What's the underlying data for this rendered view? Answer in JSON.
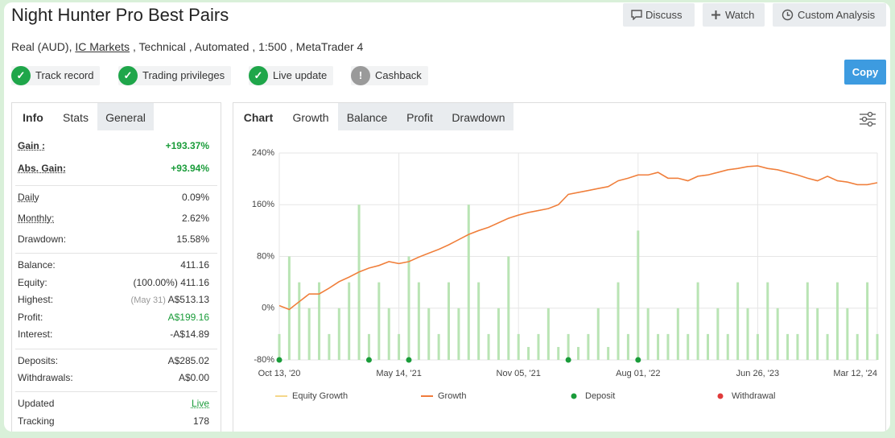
{
  "header": {
    "title": "Night Hunter Pro Best Pairs",
    "actions": [
      "Discuss",
      "Watch",
      "Custom Analysis"
    ],
    "account_type": "Real (AUD),",
    "broker": "IC Markets",
    "details": ", Technical , Automated , 1:500 , MetaTrader 4",
    "copy_button": "Copy"
  },
  "badges": [
    {
      "label": "Track record",
      "ok": true
    },
    {
      "label": "Trading privileges",
      "ok": true
    },
    {
      "label": "Live update",
      "ok": true
    },
    {
      "label": "Cashback",
      "ok": false
    }
  ],
  "stats_panel": {
    "tabs": [
      "Info",
      "Stats",
      "General"
    ],
    "groups": [
      [
        {
          "label": "Gain :",
          "value": "+193.37%",
          "color": "#1a9c3a"
        },
        {
          "label": "Abs. Gain:",
          "value": "+93.94%",
          "color": "#1a9c3a"
        }
      ],
      [
        {
          "label": "Daily",
          "value": "0.09%"
        },
        {
          "label": "Monthly:",
          "value": "2.62%"
        },
        {
          "label": "Drawdown:",
          "value": "15.58%"
        }
      ],
      [
        {
          "label": "Balance:",
          "value": "411.16"
        },
        {
          "label": "Equity:",
          "note": "(100.00%)",
          "value": "411.16"
        },
        {
          "label": "Highest:",
          "note": "(May 31)",
          "value": "A$513.13"
        },
        {
          "label": "Profit:",
          "value": "A$199.16",
          "color": "#1a9c3a"
        },
        {
          "label": "Interest:",
          "value": "-A$14.89"
        }
      ],
      [
        {
          "label": "Deposits:",
          "value": "A$285.02"
        },
        {
          "label": "Withdrawals:",
          "value": "A$0.00"
        }
      ],
      [
        {
          "label": "Updated",
          "value": "Live",
          "color": "#1a9c3a"
        },
        {
          "label": "Tracking",
          "value": "178"
        }
      ]
    ]
  },
  "chart_panel": {
    "label": "Chart",
    "tabs": [
      "Growth",
      "Balance",
      "Profit",
      "Drawdown"
    ]
  },
  "chart_data": {
    "type": "line",
    "categories": [
      "Oct 13, '20",
      null,
      null,
      null,
      null,
      null,
      null,
      null,
      null,
      null,
      null,
      null,
      "May 14, '21",
      null,
      null,
      null,
      null,
      null,
      null,
      null,
      null,
      null,
      null,
      null,
      "Nov 05, '21",
      null,
      null,
      null,
      null,
      null,
      null,
      null,
      null,
      null,
      null,
      null,
      "Aug 01, '22",
      null,
      null,
      null,
      null,
      null,
      null,
      null,
      null,
      null,
      null,
      null,
      "Jun 26, '23",
      null,
      null,
      null,
      null,
      null,
      null,
      null,
      null,
      null,
      null,
      null,
      "Mar 12, '24"
    ],
    "series": [
      {
        "name": "Equity Growth",
        "color": "#f5d78a",
        "values": [
          4,
          -2,
          10,
          22,
          22,
          31,
          41,
          48,
          56,
          62,
          66,
          72,
          69,
          72,
          79,
          85,
          91,
          98,
          106,
          114,
          120,
          125,
          132,
          139,
          144,
          148,
          151,
          154,
          160,
          176,
          179,
          182,
          185,
          188,
          197,
          201,
          206,
          206,
          210,
          201,
          201,
          197,
          204,
          206,
          210,
          214,
          216,
          219,
          220,
          216,
          214,
          210,
          206,
          201,
          197,
          204,
          197,
          195,
          191,
          191,
          194
        ]
      },
      {
        "name": "Growth",
        "color": "#f07c3c",
        "values": [
          4,
          -2,
          10,
          22,
          22,
          31,
          41,
          48,
          56,
          62,
          66,
          72,
          69,
          72,
          79,
          85,
          91,
          98,
          106,
          114,
          120,
          125,
          132,
          139,
          144,
          148,
          151,
          154,
          160,
          176,
          179,
          182,
          185,
          188,
          197,
          201,
          206,
          206,
          210,
          201,
          201,
          197,
          204,
          206,
          210,
          214,
          216,
          219,
          220,
          216,
          214,
          210,
          206,
          201,
          197,
          204,
          197,
          195,
          191,
          191,
          194
        ]
      }
    ],
    "bars": {
      "color": "#b9e4b4",
      "values": [
        -40,
        80,
        40,
        0,
        40,
        -40,
        0,
        40,
        160,
        -40,
        40,
        0,
        -40,
        80,
        40,
        0,
        -40,
        40,
        0,
        160,
        40,
        -40,
        0,
        80,
        -40,
        -60,
        -40,
        0,
        -60,
        -40,
        -60,
        -40,
        0,
        -60,
        40,
        -40,
        120,
        0,
        -40,
        -40,
        0,
        -40,
        40,
        -40,
        0,
        -40,
        40,
        0,
        -40,
        40,
        0,
        -40,
        -40,
        40,
        0,
        -40,
        40,
        0,
        -40,
        40,
        -40
      ]
    },
    "markers": [
      {
        "name": "Deposit",
        "color": "#1a9c3a",
        "indices": [
          0,
          9,
          13,
          29,
          36
        ]
      },
      {
        "name": "Withdrawal",
        "color": "#e03b3b",
        "indices": []
      }
    ],
    "ylim": [
      -80,
      240
    ],
    "yticks": [
      {
        "value": -80,
        "label": "-80%"
      },
      {
        "value": 0,
        "label": "0%"
      },
      {
        "value": 80,
        "label": "80%"
      },
      {
        "value": 160,
        "label": "160%"
      },
      {
        "value": 240,
        "label": "240%"
      }
    ],
    "grid": true
  }
}
